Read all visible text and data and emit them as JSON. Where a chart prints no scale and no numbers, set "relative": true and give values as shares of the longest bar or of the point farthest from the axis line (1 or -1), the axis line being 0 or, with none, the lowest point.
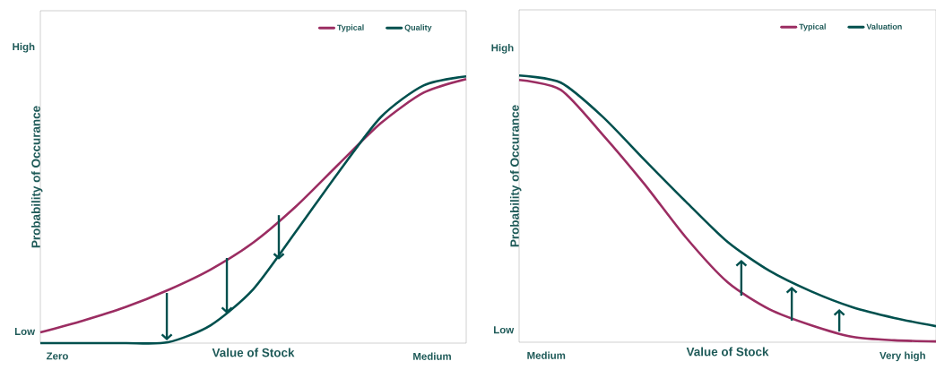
{
  "chart_data": [
    {
      "type": "line",
      "relative": true,
      "xlabel": "Value of Stock",
      "ylabel": "Probability of Occurance",
      "legend": "top right",
      "categories": [
        null,
        null,
        null,
        null,
        null,
        null,
        null,
        null,
        null,
        null,
        null
      ],
      "annotations": [
        "High",
        "Low",
        "Zero",
        "Medium"
      ],
      "series": [
        {
          "name": "Typical",
          "color": "#9b2d62",
          "values": [
            0.04,
            0.084,
            0.135,
            0.199,
            0.276,
            0.377,
            0.512,
            0.67,
            0.825,
            0.939,
            0.99
          ]
        },
        {
          "name": "Quality",
          "color": "#00504e",
          "values": [
            0,
            0,
            0,
            0.003,
            0.067,
            0.202,
            0.418,
            0.64,
            0.848,
            0.966,
            1
          ]
        }
      ]
    },
    {
      "type": "line",
      "relative": true,
      "xlabel": "Value of Stock",
      "ylabel": "Probability of Occurance",
      "legend": "top right",
      "categories": [
        null,
        null,
        null,
        null,
        null,
        null,
        null,
        null,
        null,
        null,
        null
      ],
      "annotations": [
        "High",
        "Low",
        "Medium",
        "Very high"
      ],
      "series": [
        {
          "name": "Typical",
          "color": "#9b2d62",
          "values": [
            0.983,
            0.946,
            0.779,
            0.594,
            0.393,
            0.225,
            0.124,
            0.064,
            0.02,
            0.007,
            0.003
          ]
        },
        {
          "name": "Valuation",
          "color": "#00504e",
          "values": [
            1,
            0.973,
            0.846,
            0.685,
            0.527,
            0.376,
            0.268,
            0.191,
            0.131,
            0.091,
            0.06
          ]
        }
      ]
    }
  ]
}
